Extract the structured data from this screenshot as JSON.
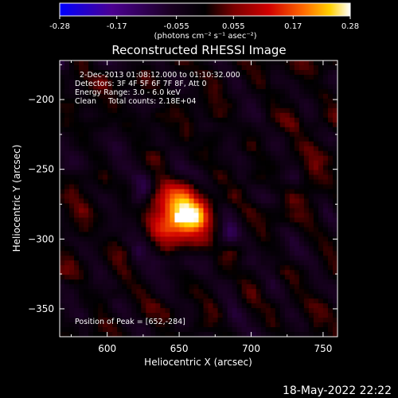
{
  "chart_data": {
    "type": "heatmap",
    "title": "Reconstructed RHESSI Image",
    "xlabel": "Heliocentric X (arcsec)",
    "ylabel": "Heliocentric Y (arcsec)",
    "xlim": [
      567,
      760
    ],
    "ylim": [
      -370,
      -172
    ],
    "x_ticks": [
      600,
      650,
      700,
      750
    ],
    "y_ticks": [
      -200,
      -250,
      -300,
      -350
    ],
    "colorbar": {
      "range": [
        -0.28,
        0.28
      ],
      "ticks": [
        "-0.28",
        "-0.17",
        "-0.055",
        "0.055",
        "0.17",
        "0.28"
      ],
      "unit_label": "(photons cm⁻² s⁻¹ asec⁻²)",
      "colormap": [
        "#0000ff",
        "#4b0091",
        "#1a0022",
        "#000000",
        "#7a0000",
        "#d10000",
        "#ff6a00",
        "#ffd000",
        "#ffffff"
      ]
    },
    "annotations": [
      "2-Dec-2013 01:08:12.000 to 01:10:32.000",
      "Detectors: 3F 4F 5F 6F 7F 8F, Att 0",
      "Energy Range: 3.0 - 6.0 keV",
      "Clean     Total counts: 2.18E+04"
    ],
    "peak": {
      "label": "Position of Peak = [652,-284]",
      "x": 652,
      "y": -284,
      "value": 0.28
    },
    "source_sigma_arcsec": 14
  },
  "footer": {
    "date": "18-May-2022 22:22"
  }
}
